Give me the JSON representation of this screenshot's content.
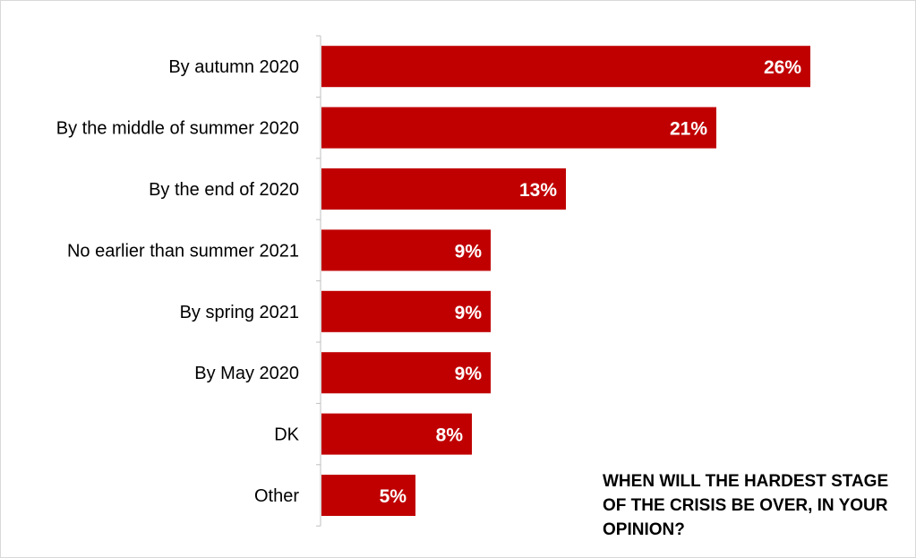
{
  "chart_data": {
    "type": "bar",
    "orientation": "horizontal",
    "categories": [
      "By autumn 2020",
      "By the middle of summer 2020",
      "By the end of 2020",
      "No earlier than summer 2021",
      "By spring 2021",
      "By May 2020",
      "DK",
      "Other"
    ],
    "values": [
      26,
      21,
      13,
      9,
      9,
      9,
      8,
      5
    ],
    "data_labels": [
      "26%",
      "21%",
      "13%",
      "9%",
      "9%",
      "9%",
      "8%",
      "5%"
    ],
    "title": "WHEN WILL THE HARDEST STAGE OF THE CRISIS BE OVER, IN YOUR OPINION?",
    "xlabel": "",
    "ylabel": "",
    "xlim": [
      0,
      30
    ],
    "unit": "%",
    "grid": false,
    "legend": "none",
    "bar_color": "#c00000",
    "label_color": "#ffffff",
    "axis_color": "#bfbfbf"
  }
}
